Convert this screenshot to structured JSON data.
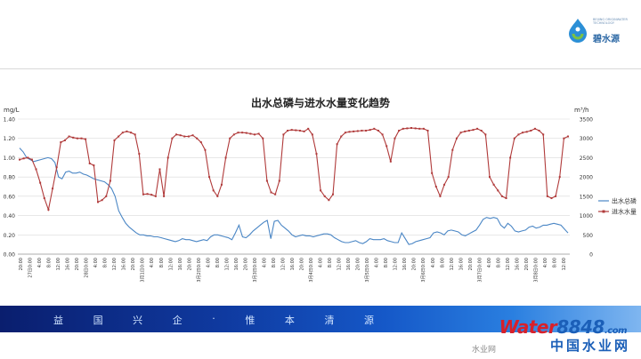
{
  "logo": {
    "name": "碧水源",
    "small_text": "BEIJING ORIGINWATER TECHNOLOGY"
  },
  "banner": {
    "slogan": [
      "益",
      "国",
      "兴",
      "企",
      "·",
      "惟",
      "本",
      "清",
      "源"
    ]
  },
  "watermark": {
    "brand_word": "Water",
    "brand_num": "8848",
    "brand_suffix": ".com",
    "cn": "中国水业网",
    "wechat": "水业网"
  },
  "colors": {
    "tp_series": "#4a86c5",
    "inflow_series": "#b03a3a",
    "banner": "#1040a8"
  },
  "chart_data": {
    "type": "line",
    "title": "出水总磷与进水水量变化趋势",
    "y_left": {
      "unit": "mg/L",
      "min": 0,
      "max": 1.4,
      "ticks": [
        "0.00",
        "0.20",
        "0.40",
        "0.60",
        "0.80",
        "1.00",
        "1.20",
        "1.40"
      ]
    },
    "y_right": {
      "unit": "m³/h",
      "min": 0,
      "max": 3500,
      "ticks": [
        "0",
        "500",
        "1000",
        "1500",
        "2000",
        "2500",
        "3000",
        "3500"
      ]
    },
    "x_tick_labels": [
      "20:00",
      "27日0:00",
      "4:00",
      "8:00",
      "12:00",
      "16:00",
      "20:00",
      "28日0:00",
      "4:00",
      "8:00",
      "12:00",
      "16:00",
      "20:00",
      "3月1日0:00",
      "4:00",
      "8:00",
      "12:00",
      "16:00",
      "20:00",
      "3月2日0:00",
      "4:00",
      "8:00",
      "12:00",
      "16:00",
      "20:00",
      "3月3日0:00",
      "4:00",
      "8:00",
      "12:00",
      "16:00",
      "20:00",
      "3月4日0:00",
      "4:00",
      "8:00",
      "12:00",
      "16:00",
      "20:00",
      "3月5日0:00",
      "4:00",
      "8:00",
      "12:00",
      "16:00",
      "20:00",
      "3月6日0:00",
      "4:00",
      "8:00",
      "12:00",
      "16:00",
      "20:00",
      "3月7日0:00",
      "4:00",
      "8:00",
      "12:00",
      "16:00",
      "20:00",
      "3月8日0:00",
      "4:00",
      "8:00",
      "12:00"
    ],
    "grid": true,
    "legend_position": "right",
    "series": [
      {
        "name": "出水总磷",
        "axis": "left",
        "values": [
          1.1,
          1.06,
          1.0,
          0.98,
          0.96,
          0.97,
          0.98,
          0.99,
          1.0,
          0.99,
          0.95,
          0.8,
          0.78,
          0.85,
          0.86,
          0.84,
          0.84,
          0.85,
          0.83,
          0.82,
          0.8,
          0.78,
          0.77,
          0.76,
          0.75,
          0.72,
          0.68,
          0.6,
          0.45,
          0.38,
          0.32,
          0.28,
          0.25,
          0.22,
          0.2,
          0.2,
          0.19,
          0.19,
          0.18,
          0.18,
          0.17,
          0.16,
          0.15,
          0.14,
          0.13,
          0.14,
          0.16,
          0.15,
          0.15,
          0.14,
          0.13,
          0.14,
          0.15,
          0.14,
          0.18,
          0.2,
          0.2,
          0.19,
          0.18,
          0.17,
          0.15,
          0.22,
          0.3,
          0.18,
          0.17,
          0.2,
          0.24,
          0.27,
          0.3,
          0.33,
          0.35,
          0.16,
          0.34,
          0.35,
          0.3,
          0.27,
          0.24,
          0.2,
          0.18,
          0.19,
          0.2,
          0.19,
          0.19,
          0.18,
          0.19,
          0.2,
          0.21,
          0.21,
          0.2,
          0.17,
          0.15,
          0.13,
          0.12,
          0.12,
          0.13,
          0.14,
          0.12,
          0.11,
          0.13,
          0.16,
          0.15,
          0.15,
          0.15,
          0.16,
          0.14,
          0.13,
          0.12,
          0.12,
          0.22,
          0.16,
          0.1,
          0.11,
          0.13,
          0.14,
          0.15,
          0.16,
          0.17,
          0.22,
          0.23,
          0.22,
          0.2,
          0.24,
          0.25,
          0.24,
          0.23,
          0.2,
          0.19,
          0.21,
          0.23,
          0.25,
          0.3,
          0.36,
          0.38,
          0.37,
          0.38,
          0.37,
          0.3,
          0.27,
          0.32,
          0.29,
          0.24,
          0.23,
          0.24,
          0.25,
          0.28,
          0.29,
          0.27,
          0.28,
          0.3,
          0.3,
          0.31,
          0.32,
          0.31,
          0.3,
          0.26,
          0.22
        ]
      },
      {
        "name": "进水水量",
        "axis": "right",
        "values": [
          2450,
          2480,
          2500,
          2450,
          2200,
          1850,
          1450,
          1150,
          1700,
          2250,
          2900,
          2950,
          3050,
          3020,
          3000,
          3000,
          2980,
          2350,
          2300,
          1350,
          1400,
          1500,
          1900,
          2950,
          3050,
          3150,
          3180,
          3150,
          3100,
          2600,
          1550,
          1560,
          1540,
          1500,
          2200,
          1500,
          2500,
          3000,
          3100,
          3080,
          3050,
          3050,
          3080,
          3000,
          2900,
          2700,
          2000,
          1650,
          1500,
          1800,
          2500,
          3000,
          3100,
          3150,
          3150,
          3140,
          3120,
          3100,
          3120,
          3000,
          1900,
          1600,
          1550,
          1900,
          3100,
          3200,
          3220,
          3210,
          3200,
          3180,
          3250,
          3100,
          2600,
          1650,
          1500,
          1400,
          1550,
          2850,
          3050,
          3150,
          3170,
          3180,
          3190,
          3200,
          3200,
          3220,
          3250,
          3200,
          3100,
          2800,
          2400,
          3000,
          3200,
          3250,
          3260,
          3270,
          3260,
          3250,
          3250,
          3200,
          2100,
          1750,
          1500,
          1800,
          2000,
          2700,
          3000,
          3150,
          3180,
          3200,
          3220,
          3250,
          3200,
          3100,
          2000,
          1800,
          1650,
          1500,
          1450,
          2500,
          3000,
          3100,
          3150,
          3170,
          3200,
          3250,
          3200,
          3100,
          1500,
          1450,
          1500,
          2000,
          3000,
          3050
        ]
      }
    ]
  }
}
